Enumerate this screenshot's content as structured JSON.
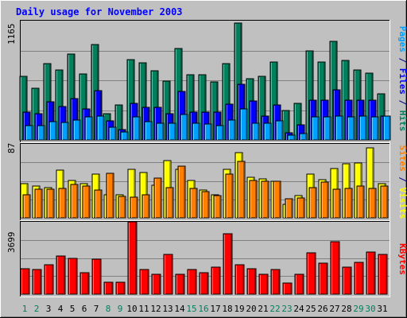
{
  "chart_data": [
    {
      "type": "bar",
      "title": "Daily usage for November 2003",
      "ymax_label": "1165",
      "ylim": [
        0,
        1165
      ],
      "side_label": [
        {
          "text": "Pages",
          "color": "#00a0ff"
        },
        {
          "text": " / ",
          "color": "#000080"
        },
        {
          "text": "Files",
          "color": "#0000ff"
        },
        {
          "text": " / ",
          "color": "#000080"
        },
        {
          "text": "Hits",
          "color": "#008060"
        }
      ],
      "series": [
        {
          "name": "Hits",
          "color": "#00805c",
          "values": [
            625,
            505,
            745,
            680,
            840,
            645,
            930,
            255,
            345,
            785,
            755,
            675,
            575,
            890,
            640,
            640,
            570,
            745,
            1145,
            595,
            620,
            765,
            290,
            355,
            870,
            760,
            965,
            780,
            685,
            650,
            450
          ]
        },
        {
          "name": "Files",
          "color": "#0000ff",
          "values": [
            275,
            255,
            370,
            330,
            405,
            300,
            480,
            185,
            100,
            355,
            320,
            320,
            255,
            470,
            270,
            275,
            275,
            350,
            540,
            380,
            235,
            345,
            70,
            145,
            385,
            385,
            490,
            390,
            390,
            385,
            230
          ]
        },
        {
          "name": "Pages",
          "color": "#00a0ff",
          "values": [
            140,
            140,
            175,
            170,
            195,
            225,
            235,
            125,
            75,
            225,
            175,
            160,
            165,
            245,
            165,
            155,
            140,
            195,
            305,
            160,
            160,
            185,
            45,
            65,
            225,
            225,
            230,
            225,
            235,
            225,
            230
          ]
        }
      ]
    },
    {
      "type": "bar",
      "ymax_label": "87",
      "ylim": [
        0,
        87
      ],
      "side_label": [
        {
          "text": "Sites",
          "color": "#ff8000"
        },
        {
          "text": " / ",
          "color": "#000080"
        },
        {
          "text": "Visits",
          "color": "#ffff00"
        }
      ],
      "series": [
        {
          "name": "Visits",
          "color": "#ffff00",
          "values": [
            40,
            37,
            36,
            56,
            44,
            40,
            51,
            27,
            27,
            57,
            53,
            38,
            67,
            57,
            44,
            33,
            27,
            57,
            77,
            48,
            46,
            43,
            16,
            26,
            51,
            45,
            58,
            64,
            65,
            82,
            40
          ]
        },
        {
          "name": "Sites",
          "color": "#ff8000",
          "values": [
            27,
            34,
            34,
            35,
            39,
            37,
            33,
            52,
            25,
            24,
            27,
            47,
            36,
            61,
            35,
            31,
            26,
            51,
            66,
            44,
            43,
            43,
            22,
            23,
            36,
            42,
            34,
            35,
            37,
            35,
            37
          ]
        }
      ]
    },
    {
      "type": "bar",
      "ymax_label": "3699",
      "ylim": [
        0,
        3699
      ],
      "side_label": [
        {
          "text": "KBytes",
          "color": "#ff0000"
        }
      ],
      "series": [
        {
          "name": "KBytes",
          "color": "#ff0000",
          "values": [
            1300,
            1260,
            1520,
            1950,
            1820,
            1080,
            1790,
            590,
            590,
            3699,
            1270,
            1010,
            2040,
            1000,
            1280,
            1090,
            1380,
            3080,
            1520,
            1320,
            1030,
            1270,
            560,
            1030,
            2120,
            1570,
            2680,
            1380,
            1610,
            2160,
            2020
          ]
        }
      ]
    }
  ],
  "days": [
    {
      "label": "1",
      "weekend": true
    },
    {
      "label": "2",
      "weekend": true
    },
    {
      "label": "3",
      "weekend": false
    },
    {
      "label": "4",
      "weekend": false
    },
    {
      "label": "5",
      "weekend": false
    },
    {
      "label": "6",
      "weekend": false
    },
    {
      "label": "7",
      "weekend": false
    },
    {
      "label": "8",
      "weekend": true
    },
    {
      "label": "9",
      "weekend": true
    },
    {
      "label": "10",
      "weekend": false
    },
    {
      "label": "11",
      "weekend": false
    },
    {
      "label": "12",
      "weekend": false
    },
    {
      "label": "13",
      "weekend": false
    },
    {
      "label": "14",
      "weekend": false
    },
    {
      "label": "15",
      "weekend": true
    },
    {
      "label": "16",
      "weekend": true
    },
    {
      "label": "17",
      "weekend": false
    },
    {
      "label": "18",
      "weekend": false
    },
    {
      "label": "19",
      "weekend": false
    },
    {
      "label": "20",
      "weekend": false
    },
    {
      "label": "21",
      "weekend": false
    },
    {
      "label": "22",
      "weekend": true
    },
    {
      "label": "23",
      "weekend": true
    },
    {
      "label": "24",
      "weekend": false
    },
    {
      "label": "25",
      "weekend": false
    },
    {
      "label": "26",
      "weekend": false
    },
    {
      "label": "27",
      "weekend": false
    },
    {
      "label": "28",
      "weekend": false
    },
    {
      "label": "29",
      "weekend": true
    },
    {
      "label": "30",
      "weekend": true
    },
    {
      "label": "31",
      "weekend": false
    }
  ],
  "colors": {
    "background": "#c0c0c0",
    "title": "#0000ff",
    "weekday_label": "#000000",
    "weekend_label": "#00805c",
    "gridline": "#808080"
  }
}
